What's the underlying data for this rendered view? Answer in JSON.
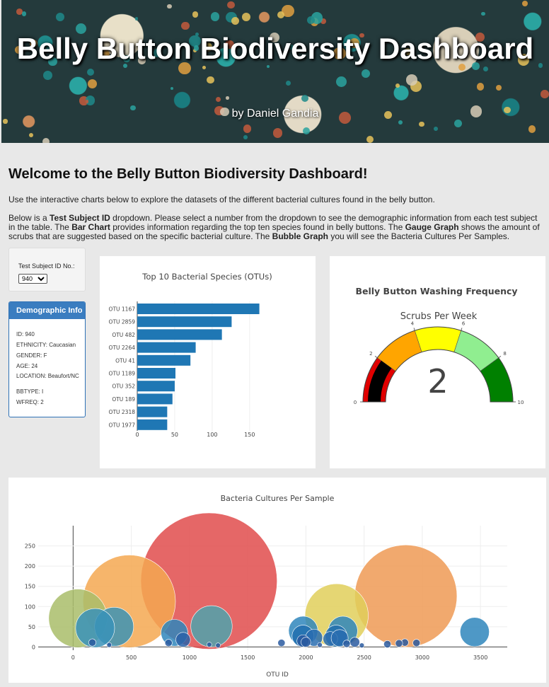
{
  "hero": {
    "title": "Belly Button Biodiversity Dashboard",
    "subtitle": "by Daniel Gandia"
  },
  "intro": {
    "heading": "Welcome to the Belly Button Biodiversity Dashboard!",
    "p1": "Use the interactive charts below to explore the datasets of the different bacterial cultures found in the belly button.",
    "p2_parts": {
      "a": "Below is a ",
      "b_test": "Test Subject ID",
      "c": " dropdown. Please select a number from the dropdown to see the demographic information from each test subject in the table. The ",
      "d_bar": "Bar Chart",
      "e": " provides information regarding the top ten species found in belly buttons. The ",
      "f_gauge": "Gauge Graph",
      "g": " shows the amount of scrubs that are suggested based on the specific bacterial culture. The ",
      "h_bubble": "Bubble Graph",
      "i": " you will see the Bacteria Cultures Per Samples."
    }
  },
  "selector": {
    "label": "Test Subject ID No.:",
    "selected": "940"
  },
  "demographics": {
    "heading": "Demographic Info",
    "lines": [
      "ID: 940",
      "ETHNICITY: Caucasian",
      "GENDER: F",
      "AGE: 24",
      "LOCATION: Beaufort/NC",
      "BBTYPE: I",
      "WFREQ: 2"
    ]
  },
  "chart_data": [
    {
      "type": "bar",
      "orientation": "horizontal",
      "title": "Top 10 Bacterial Species (OTUs)",
      "categories": [
        "OTU 1167",
        "OTU 2859",
        "OTU 482",
        "OTU 2264",
        "OTU 41",
        "OTU 1189",
        "OTU 352",
        "OTU 189",
        "OTU 2318",
        "OTU 1977"
      ],
      "values": [
        163,
        126,
        113,
        78,
        71,
        51,
        50,
        47,
        40,
        40
      ],
      "xlim": [
        0,
        170
      ],
      "xticks": [
        0,
        50,
        100,
        150
      ],
      "color": "#1f77b4"
    },
    {
      "type": "gauge",
      "title": "Belly Button Washing Frequency",
      "subtitle": "Scrubs Per Week",
      "value": 2,
      "range": [
        0,
        10
      ],
      "ticks": [
        0,
        2,
        4,
        6,
        8,
        10
      ],
      "steps": [
        {
          "range": [
            0,
            2
          ],
          "color": "#e00000"
        },
        {
          "range": [
            2,
            4
          ],
          "color": "#ffa500"
        },
        {
          "range": [
            4,
            6
          ],
          "color": "#ffff00"
        },
        {
          "range": [
            6,
            8
          ],
          "color": "#90ee90"
        },
        {
          "range": [
            8,
            10
          ],
          "color": "#008000"
        }
      ],
      "bar_color": "#000000"
    },
    {
      "type": "scatter",
      "title": "Bacteria Cultures Per Sample",
      "xlabel": "OTU ID",
      "ylabel": "",
      "xlim": [
        -300,
        3730
      ],
      "ylim": [
        -8,
        300
      ],
      "xticks": [
        0,
        500,
        1000,
        1500,
        2000,
        2500,
        3000,
        3500
      ],
      "yticks": [
        0,
        50,
        100,
        150,
        200,
        250
      ],
      "points": [
        {
          "x": 1167,
          "y": 163,
          "r": 56,
          "color": "#e04c4c"
        },
        {
          "x": 2859,
          "y": 126,
          "r": 42,
          "color": "#ee9a55"
        },
        {
          "x": 482,
          "y": 113,
          "r": 38,
          "color": "#f4a851"
        },
        {
          "x": 2264,
          "y": 78,
          "r": 26,
          "color": "#e0cf5a"
        },
        {
          "x": 41,
          "y": 71,
          "r": 24,
          "color": "#a9bd6a"
        },
        {
          "x": 1189,
          "y": 51,
          "r": 17,
          "color": "#4fa3ad"
        },
        {
          "x": 352,
          "y": 50,
          "r": 16,
          "color": "#3c93b4"
        },
        {
          "x": 189,
          "y": 47,
          "r": 16,
          "color": "#3a92b8"
        },
        {
          "x": 2318,
          "y": 40,
          "r": 12,
          "color": "#2f86bc"
        },
        {
          "x": 1977,
          "y": 40,
          "r": 12,
          "color": "#2f86bc"
        },
        {
          "x": 3450,
          "y": 37,
          "r": 12,
          "color": "#2f86bc"
        },
        {
          "x": 870,
          "y": 35,
          "r": 11,
          "color": "#2f86bc"
        },
        {
          "x": 1975,
          "y": 27,
          "r": 9,
          "color": "#216fae"
        },
        {
          "x": 2260,
          "y": 27,
          "r": 9,
          "color": "#216fae"
        },
        {
          "x": 2070,
          "y": 23,
          "r": 7,
          "color": "#2a6db0"
        },
        {
          "x": 2210,
          "y": 20,
          "r": 6,
          "color": "#2a6db0"
        },
        {
          "x": 2290,
          "y": 22,
          "r": 7,
          "color": "#2a6db0"
        },
        {
          "x": 945,
          "y": 18,
          "r": 6,
          "color": "#2a62a8"
        },
        {
          "x": 1975,
          "y": 15,
          "r": 5,
          "color": "#2a5aa0"
        },
        {
          "x": 2000,
          "y": 12,
          "r": 4,
          "color": "#2a5aa0"
        },
        {
          "x": 2420,
          "y": 12,
          "r": 4,
          "color": "#2a5aa0"
        },
        {
          "x": 2850,
          "y": 11,
          "r": 3,
          "color": "#2a5aa0"
        },
        {
          "x": 2950,
          "y": 10,
          "r": 3,
          "color": "#2a5aa0"
        },
        {
          "x": 2800,
          "y": 9,
          "r": 3,
          "color": "#2a5aa0"
        },
        {
          "x": 1790,
          "y": 10,
          "r": 3,
          "color": "#2a5aa0"
        },
        {
          "x": 2350,
          "y": 8,
          "r": 3,
          "color": "#2a5aa0"
        },
        {
          "x": 2700,
          "y": 7,
          "r": 3,
          "color": "#2a5aa0"
        },
        {
          "x": 165,
          "y": 11,
          "r": 3,
          "color": "#2a5aa0"
        },
        {
          "x": 820,
          "y": 10,
          "r": 3,
          "color": "#2a5aa0"
        },
        {
          "x": 1170,
          "y": 6,
          "r": 2,
          "color": "#2a5aa0"
        },
        {
          "x": 1245,
          "y": 4,
          "r": 2,
          "color": "#2a5aa0"
        },
        {
          "x": 310,
          "y": 5,
          "r": 2,
          "color": "#2a5aa0"
        },
        {
          "x": 2120,
          "y": 5,
          "r": 2,
          "color": "#2a5aa0"
        },
        {
          "x": 2480,
          "y": 4,
          "r": 2,
          "color": "#2a5aa0"
        }
      ]
    }
  ]
}
